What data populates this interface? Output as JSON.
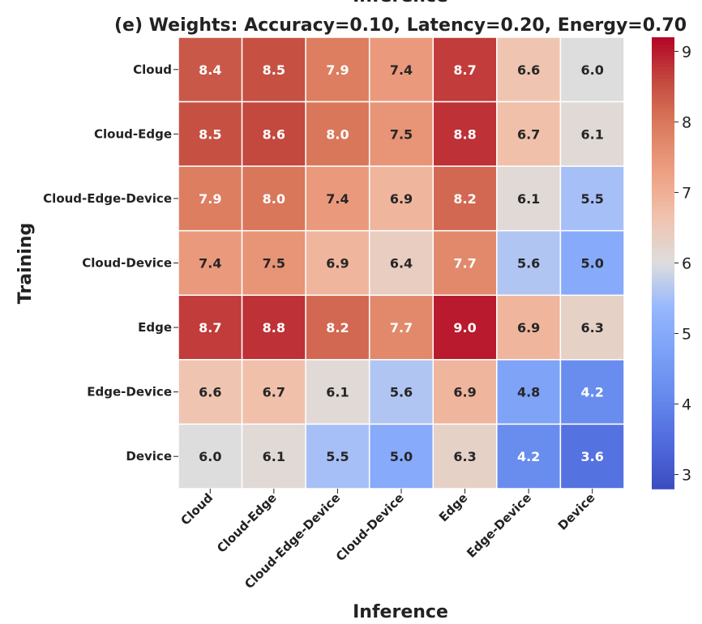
{
  "chart_data": {
    "type": "heatmap",
    "top_label_partial": "Inference",
    "title": "(e) Weights: Accuracy=0.10, Latency=0.20, Energy=0.70",
    "xlabel": "Inference",
    "ylabel": "Training",
    "x_categories": [
      "Cloud",
      "Cloud-Edge",
      "Cloud-Edge-Device",
      "Cloud-Device",
      "Edge",
      "Edge-Device",
      "Device"
    ],
    "y_categories": [
      "Cloud",
      "Cloud-Edge",
      "Cloud-Edge-Device",
      "Cloud-Device",
      "Edge",
      "Edge-Device",
      "Device"
    ],
    "values": [
      [
        8.4,
        8.5,
        7.9,
        7.4,
        8.7,
        6.6,
        6.0
      ],
      [
        8.5,
        8.6,
        8.0,
        7.5,
        8.8,
        6.7,
        6.1
      ],
      [
        7.9,
        8.0,
        7.4,
        6.9,
        8.2,
        6.1,
        5.5
      ],
      [
        7.4,
        7.5,
        6.9,
        6.4,
        7.7,
        5.6,
        5.0
      ],
      [
        8.7,
        8.8,
        8.2,
        7.7,
        9.0,
        6.9,
        6.3
      ],
      [
        6.6,
        6.7,
        6.1,
        5.6,
        6.9,
        4.8,
        4.2
      ],
      [
        6.0,
        6.1,
        5.5,
        5.0,
        6.3,
        4.2,
        3.6
      ]
    ],
    "value_format": "0.0",
    "colormap": "coolwarm",
    "vmin": 2.8,
    "vmax": 9.2,
    "colorbar_ticks": [
      3,
      4,
      5,
      6,
      7,
      8,
      9
    ],
    "label_color_dark": "#262626",
    "label_color_light": "#ffffff"
  }
}
